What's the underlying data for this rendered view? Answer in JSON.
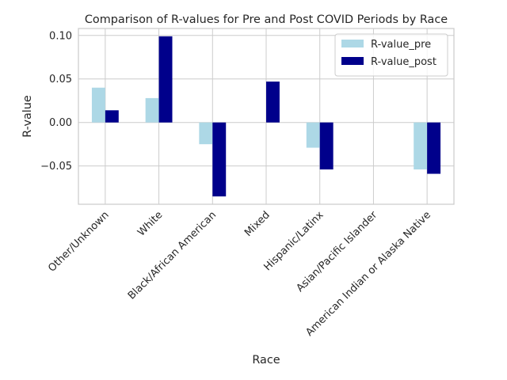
{
  "chart_data": {
    "type": "bar",
    "title": "Comparison of R-values for Pre and Post COVID Periods by Race",
    "xlabel": "Race",
    "ylabel": "R-value",
    "categories": [
      "Other/Unknown",
      "White",
      "Black/African American",
      "Mixed",
      "Hispanic/Latinx",
      "Asian/Pacific Islander",
      "American Indian or Alaska Native"
    ],
    "series": [
      {
        "name": "R-value_pre",
        "color": "#add8e6",
        "values": [
          0.04,
          0.028,
          -0.025,
          0.0,
          -0.029,
          0.0,
          -0.054
        ]
      },
      {
        "name": "R-value_post",
        "color": "#00008b",
        "values": [
          0.014,
          0.099,
          -0.085,
          0.047,
          -0.054,
          0.0,
          -0.059
        ]
      }
    ],
    "yticks": [
      -0.05,
      0.0,
      0.05,
      0.1
    ],
    "ytick_labels": [
      "−0.05",
      "0.00",
      "0.05",
      "0.10"
    ],
    "ylim": [
      -0.094,
      0.108
    ],
    "grid": true,
    "legend_position": "top-right"
  }
}
